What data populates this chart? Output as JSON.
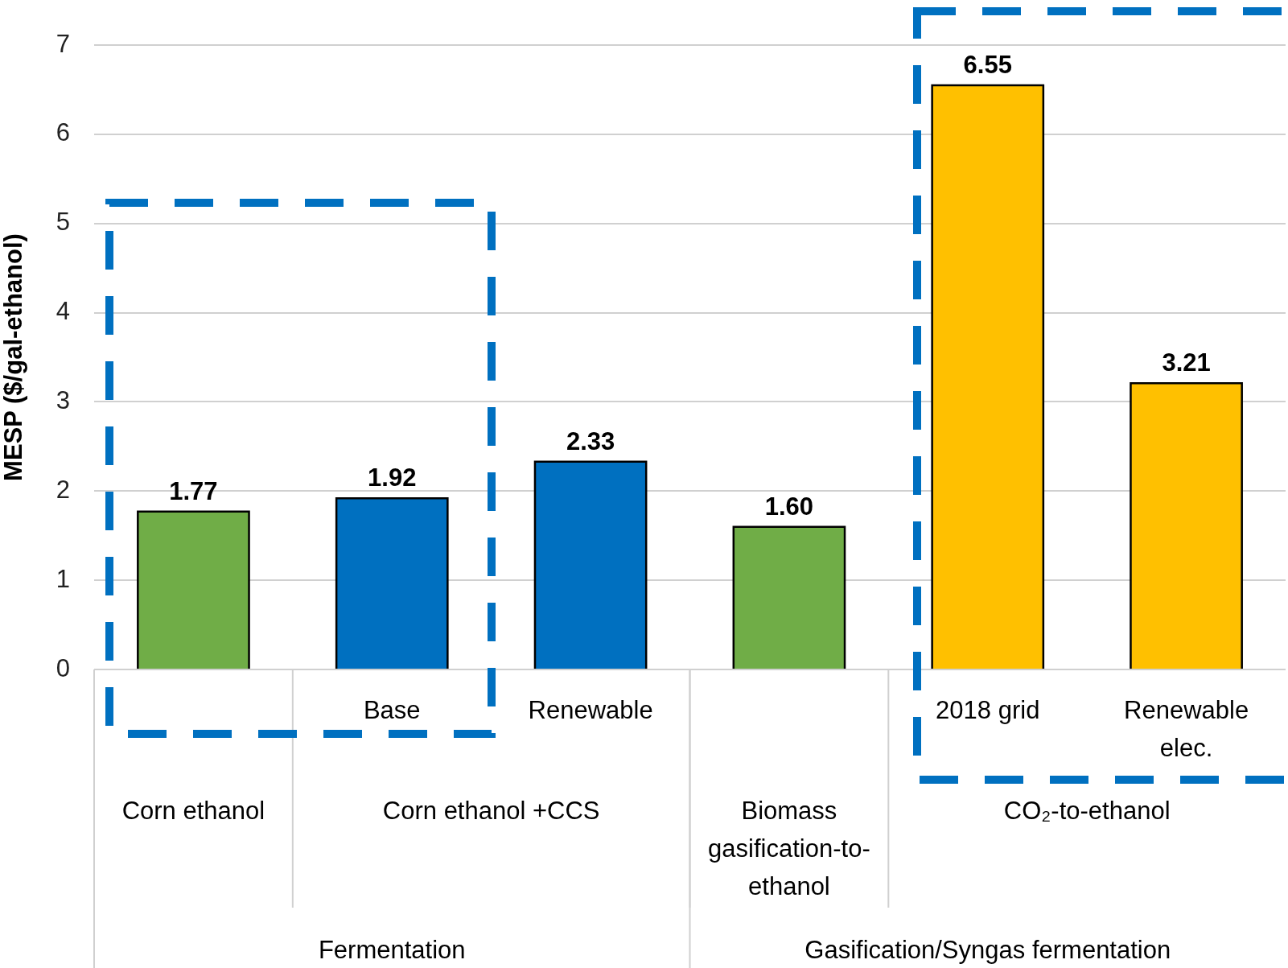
{
  "chart_data": {
    "type": "bar",
    "ylabel": "MESP ($/gal-ethanol)",
    "categories": [
      null,
      "Base",
      "Renewable",
      null,
      "2018 grid",
      "Renewable elec."
    ],
    "values": [
      1.77,
      1.92,
      2.33,
      1.6,
      6.55,
      3.21
    ],
    "colors": [
      "#70ad47",
      "#0070c0",
      "#0070c0",
      "#70ad47",
      "#ffc000",
      "#ffc000"
    ],
    "value_labels": [
      "1.77",
      "1.92",
      "2.33",
      "1.60",
      "6.55",
      "3.21"
    ],
    "ylim": [
      0,
      7
    ],
    "yticks": [
      0,
      1,
      2,
      3,
      4,
      5,
      6,
      7
    ],
    "grid": "y",
    "annotations": [
      "Corn ethanol",
      "Corn ethanol +CCS",
      "Biomass gasification-to-ethanol",
      "CO₂-to-ethanol",
      "Fermentation",
      "Gasification/Syngas fermentation"
    ]
  }
}
